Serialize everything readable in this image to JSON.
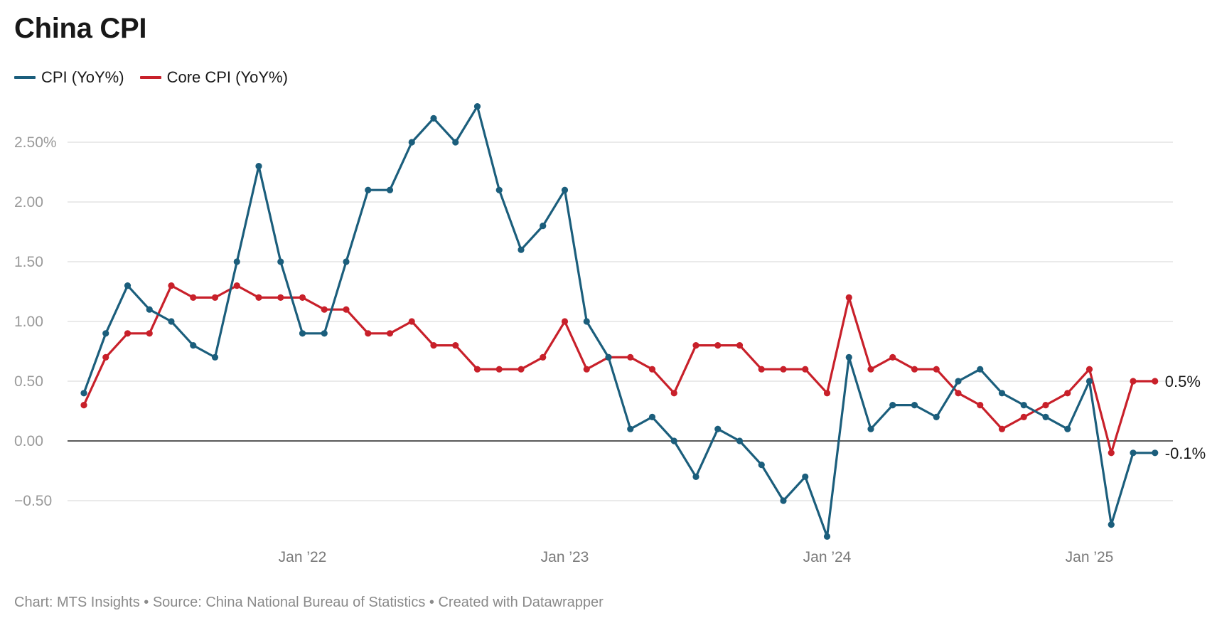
{
  "title": "China CPI",
  "footer": "Chart: MTS Insights • Source: China National Bureau of Statistics • Created with Datawrapper",
  "chart_data": {
    "type": "line",
    "title": "China CPI",
    "xlabel": "",
    "ylabel": "",
    "ylim": [
      -0.8,
      2.8
    ],
    "y_ticks": [
      2.5,
      2.0,
      1.5,
      1.0,
      0.5,
      0.0,
      -0.5
    ],
    "y_tick_labels": [
      "2.50%",
      "2.00",
      "1.50",
      "1.00",
      "0.50",
      "0.00",
      "−0.50"
    ],
    "x_tick_labels": [
      {
        "label": "Jan ’22",
        "index": 10
      },
      {
        "label": "Jan ’23",
        "index": 22
      },
      {
        "label": "Jan ’24",
        "index": 34
      },
      {
        "label": "Jan ’25",
        "index": 46
      }
    ],
    "x": [
      "2021-03",
      "2021-04",
      "2021-05",
      "2021-06",
      "2021-07",
      "2021-08",
      "2021-09",
      "2021-10",
      "2021-11",
      "2021-12",
      "2022-01",
      "2022-02",
      "2022-03",
      "2022-04",
      "2022-05",
      "2022-06",
      "2022-07",
      "2022-08",
      "2022-09",
      "2022-10",
      "2022-11",
      "2022-12",
      "2023-01",
      "2023-02",
      "2023-03",
      "2023-04",
      "2023-05",
      "2023-06",
      "2023-07",
      "2023-08",
      "2023-09",
      "2023-10",
      "2023-11",
      "2023-12",
      "2024-01",
      "2024-02",
      "2024-03",
      "2024-04",
      "2024-05",
      "2024-06",
      "2024-07",
      "2024-08",
      "2024-09",
      "2024-10",
      "2024-11",
      "2024-12",
      "2025-01",
      "2025-02",
      "2025-03",
      "2025-04"
    ],
    "grid": true,
    "legend": "top-left",
    "series": [
      {
        "name": "CPI (YoY%)",
        "color": "#1b5e7c",
        "end_label": "-0.1%",
        "values": [
          0.4,
          0.9,
          1.3,
          1.1,
          1.0,
          0.8,
          0.7,
          1.5,
          2.3,
          1.5,
          0.9,
          0.9,
          1.5,
          2.1,
          2.1,
          2.5,
          2.7,
          2.5,
          2.8,
          2.1,
          1.6,
          1.8,
          2.1,
          1.0,
          0.7,
          0.1,
          0.2,
          0.0,
          -0.3,
          0.1,
          0.0,
          -0.2,
          -0.5,
          -0.3,
          -0.8,
          0.7,
          0.1,
          0.3,
          0.3,
          0.2,
          0.5,
          0.6,
          0.4,
          0.3,
          0.2,
          0.1,
          0.5,
          -0.7,
          -0.1,
          -0.1
        ]
      },
      {
        "name": "Core CPI (YoY%)",
        "color": "#c8202a",
        "end_label": "0.5%",
        "values": [
          0.3,
          0.7,
          0.9,
          0.9,
          1.3,
          1.2,
          1.2,
          1.3,
          1.2,
          1.2,
          1.2,
          1.1,
          1.1,
          0.9,
          0.9,
          1.0,
          0.8,
          0.8,
          0.6,
          0.6,
          0.6,
          0.7,
          1.0,
          0.6,
          0.7,
          0.7,
          0.6,
          0.4,
          0.8,
          0.8,
          0.8,
          0.6,
          0.6,
          0.6,
          0.4,
          1.2,
          0.6,
          0.7,
          0.6,
          0.6,
          0.4,
          0.3,
          0.1,
          0.2,
          0.3,
          0.4,
          0.6,
          -0.1,
          0.5,
          0.5
        ]
      }
    ]
  }
}
